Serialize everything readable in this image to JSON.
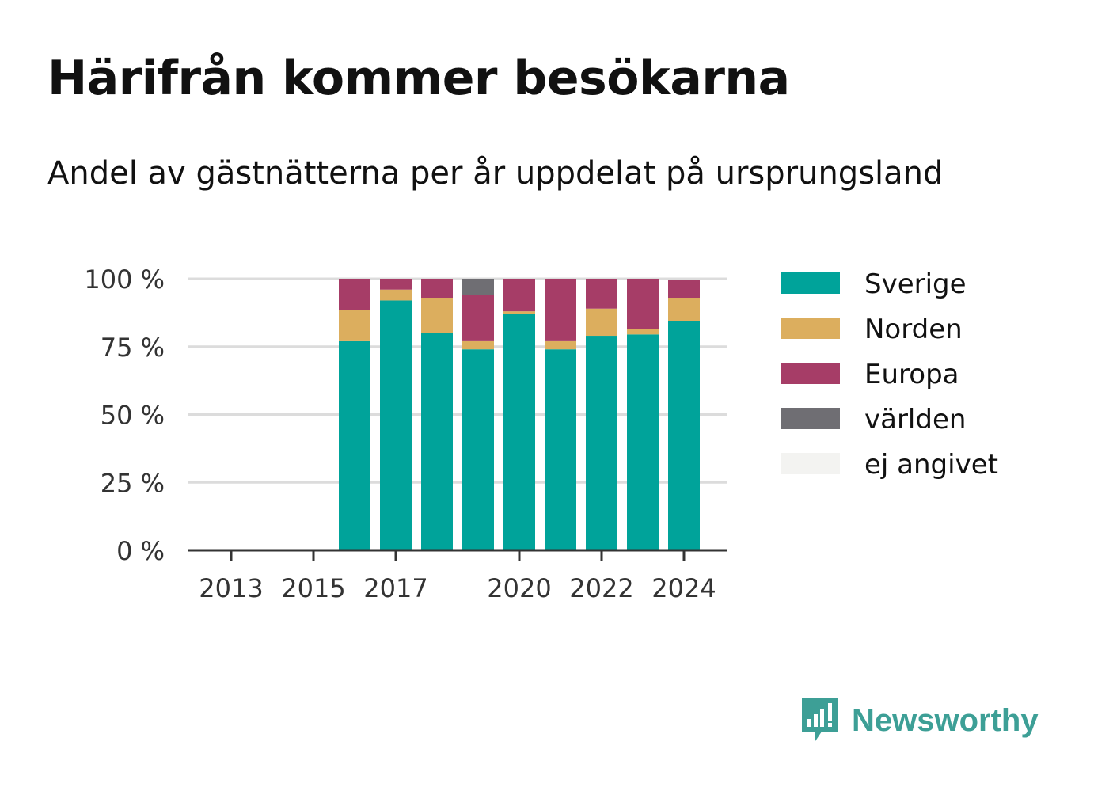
{
  "title": "Härifrån kommer besökarna",
  "subtitle": "Andel av gästnätterna per år uppdelat på ursprungsland",
  "brand": "Newsworthy",
  "chart_data": {
    "type": "bar",
    "stacked": true,
    "x": [
      2013,
      2014,
      2015,
      2016,
      2017,
      2018,
      2019,
      2020,
      2021,
      2022,
      2023,
      2024
    ],
    "x_tick_labels": [
      "2013",
      "2015",
      "2017",
      "2020",
      "2022",
      "2024"
    ],
    "y_tick_labels": [
      "0 %",
      "25 %",
      "50 %",
      "75 %",
      "100 %"
    ],
    "ylim": [
      0,
      100
    ],
    "grid": true,
    "legend_position": "right",
    "series": [
      {
        "name": "Sverige",
        "color": "#00a39a",
        "values": [
          null,
          null,
          null,
          77,
          92,
          80,
          74,
          87,
          74,
          79,
          79.5,
          84.5
        ]
      },
      {
        "name": "Norden",
        "color": "#dcae5e",
        "values": [
          null,
          null,
          null,
          11.5,
          4,
          13,
          3,
          1,
          3,
          10,
          2,
          8.5
        ]
      },
      {
        "name": "Europa",
        "color": "#a63d67",
        "values": [
          null,
          null,
          null,
          11.5,
          4,
          7,
          17,
          12,
          23,
          11,
          18.5,
          6.5
        ]
      },
      {
        "name": "världen",
        "color": "#6f6e73",
        "values": [
          null,
          null,
          null,
          0,
          0,
          0,
          6,
          0,
          0,
          0,
          0,
          0
        ]
      },
      {
        "name": "ej angivet",
        "color": "#f3f3f1",
        "values": [
          null,
          null,
          null,
          0,
          0,
          0,
          0,
          0,
          0,
          0,
          0,
          0
        ]
      }
    ]
  }
}
